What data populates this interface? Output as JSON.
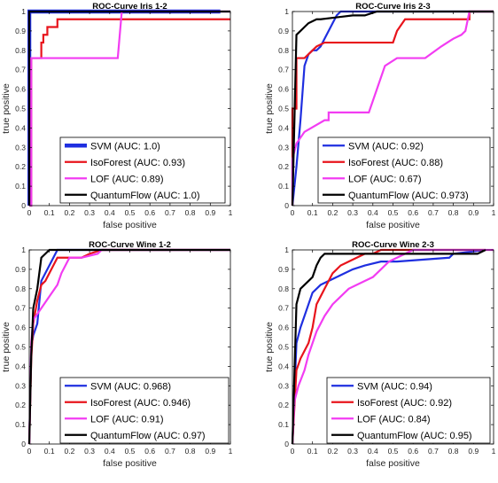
{
  "colors": {
    "svm": "#1f2fe0",
    "isoforest": "#e8141c",
    "lof": "#f23cf2",
    "quantumflow": "#000000"
  },
  "chart_data": [
    {
      "type": "line",
      "title": "ROC-Curve Iris 1-2",
      "xlabel": "false positive",
      "ylabel": "true positive",
      "xlim": [
        0,
        1
      ],
      "ylim": [
        0,
        1
      ],
      "xticks": [
        "0",
        "0.1",
        "0.2",
        "0.3",
        "0.4",
        "0.5",
        "0.6",
        "0.7",
        "0.8",
        "0.9",
        "1"
      ],
      "yticks": [
        "0",
        "0.1",
        "0.2",
        "0.3",
        "0.4",
        "0.5",
        "0.6",
        "0.7",
        "0.8",
        "0.9",
        "1"
      ],
      "legend_position": "bottom-right",
      "grid": false,
      "series": [
        {
          "name": "SVM (AUC: 1.0)",
          "color": "#1f2fe0",
          "width": 4.5,
          "x": [
            0,
            0,
            0.95
          ],
          "y": [
            0,
            1,
            1
          ]
        },
        {
          "name": "IsoForest (AUC: 0.93)",
          "color": "#e8141c",
          "width": 2.2,
          "x": [
            0,
            0.01,
            0.01,
            0.05,
            0.06,
            0.06,
            0.07,
            0.07,
            0.09,
            0.09,
            0.14,
            0.14,
            1.0
          ],
          "y": [
            0,
            0,
            0.76,
            0.76,
            0.76,
            0.84,
            0.84,
            0.88,
            0.88,
            0.92,
            0.92,
            0.96,
            0.96
          ]
        },
        {
          "name": "LOF (AUC: 0.89)",
          "color": "#f23cf2",
          "width": 2.2,
          "x": [
            0,
            0.01,
            0.01,
            0.44,
            0.46,
            0.46,
            1.0
          ],
          "y": [
            0,
            0,
            0.76,
            0.76,
            1.0,
            1.0,
            1.0
          ]
        },
        {
          "name": "QuantumFlow (AUC: 1.0)",
          "color": "#000000",
          "width": 2.2,
          "x": [
            0,
            0,
            0.4,
            1.0
          ],
          "y": [
            0,
            1,
            1,
            1
          ]
        }
      ]
    },
    {
      "type": "line",
      "title": "ROC-Curve Iris 2-3",
      "xlabel": "false positive",
      "ylabel": "true positive",
      "xlim": [
        0,
        1
      ],
      "ylim": [
        0,
        1
      ],
      "xticks": [
        "0",
        "0.1",
        "0.2",
        "0.3",
        "0.4",
        "0.5",
        "0.6",
        "0.7",
        "0.8",
        "0.9",
        "1"
      ],
      "yticks": [
        "0",
        "0.1",
        "0.2",
        "0.3",
        "0.4",
        "0.5",
        "0.6",
        "0.7",
        "0.8",
        "0.9",
        "1"
      ],
      "legend_position": "bottom-right",
      "grid": false,
      "series": [
        {
          "name": "SVM (AUC: 0.92)",
          "color": "#1f2fe0",
          "width": 2.2,
          "x": [
            0,
            0.02,
            0.04,
            0.06,
            0.08,
            0.1,
            0.12,
            0.14,
            0.16,
            0.18,
            0.2,
            0.22,
            0.24,
            0.26,
            1.0
          ],
          "y": [
            0,
            0.2,
            0.44,
            0.72,
            0.78,
            0.8,
            0.8,
            0.82,
            0.86,
            0.9,
            0.94,
            0.98,
            1.0,
            1.0,
            1.0
          ]
        },
        {
          "name": "IsoForest (AUC: 0.88)",
          "color": "#e8141c",
          "width": 2.2,
          "x": [
            0,
            0,
            0.02,
            0.02,
            0.06,
            0.08,
            0.1,
            0.12,
            0.16,
            0.2,
            0.5,
            0.52,
            0.56,
            0.86,
            0.88,
            0.88,
            1.0
          ],
          "y": [
            0,
            0.5,
            0.5,
            0.76,
            0.76,
            0.78,
            0.8,
            0.82,
            0.84,
            0.84,
            0.84,
            0.9,
            0.96,
            0.96,
            0.96,
            1.0,
            1.0
          ]
        },
        {
          "name": "LOF (AUC: 0.67)",
          "color": "#f23cf2",
          "width": 2.2,
          "x": [
            0,
            0,
            0.02,
            0.06,
            0.16,
            0.18,
            0.18,
            0.38,
            0.42,
            0.46,
            0.52,
            0.58,
            0.66,
            0.74,
            0.8,
            0.84,
            0.86,
            0.88,
            0.9,
            1.0
          ],
          "y": [
            0,
            0.24,
            0.32,
            0.38,
            0.44,
            0.44,
            0.48,
            0.48,
            0.6,
            0.72,
            0.76,
            0.76,
            0.76,
            0.82,
            0.86,
            0.88,
            0.9,
            1.0,
            1.0,
            1.0
          ]
        },
        {
          "name": "QuantumFlow (AUC: 0.973)",
          "color": "#000000",
          "width": 2.2,
          "x": [
            0,
            0.02,
            0.04,
            0.06,
            0.08,
            0.12,
            0.14,
            0.3,
            0.36,
            0.42,
            0.5,
            0.6,
            0.8,
            0.92,
            1.0
          ],
          "y": [
            0,
            0.88,
            0.9,
            0.92,
            0.94,
            0.96,
            0.96,
            0.98,
            0.98,
            1.0,
            1.0,
            1.0,
            1.0,
            1.0,
            1.0
          ]
        }
      ]
    },
    {
      "type": "line",
      "title": "ROC-Curve Wine 1-2",
      "xlabel": "false positive",
      "ylabel": "true positive",
      "xlim": [
        0,
        1
      ],
      "ylim": [
        0,
        1
      ],
      "xticks": [
        "0",
        "0.1",
        "0.2",
        "0.3",
        "0.4",
        "0.5",
        "0.6",
        "0.7",
        "0.8",
        "0.9",
        "1"
      ],
      "yticks": [
        "0",
        "0.1",
        "0.2",
        "0.3",
        "0.4",
        "0.5",
        "0.6",
        "0.7",
        "0.8",
        "0.9",
        "1"
      ],
      "legend_position": "bottom-right",
      "grid": false,
      "series": [
        {
          "name": "SVM (AUC: 0.968)",
          "color": "#1f2fe0",
          "width": 2.2,
          "x": [
            0,
            0.01,
            0.02,
            0.04,
            0.06,
            0.08,
            0.1,
            0.12,
            0.14,
            0.16,
            0.18,
            1.0
          ],
          "y": [
            0,
            0.5,
            0.56,
            0.62,
            0.84,
            0.88,
            0.92,
            0.96,
            1.0,
            1.0,
            1.0,
            1.0
          ]
        },
        {
          "name": "IsoForest (AUC: 0.946)",
          "color": "#e8141c",
          "width": 2.2,
          "x": [
            0,
            0.01,
            0.02,
            0.04,
            0.06,
            0.08,
            0.1,
            0.14,
            0.2,
            0.26,
            0.3,
            0.36,
            0.4,
            0.46,
            0.52,
            1.0
          ],
          "y": [
            0,
            0.44,
            0.62,
            0.74,
            0.82,
            0.84,
            0.88,
            0.96,
            0.96,
            0.96,
            0.98,
            1.0,
            1.0,
            1.0,
            1.0,
            1.0
          ]
        },
        {
          "name": "LOF (AUC: 0.91)",
          "color": "#f23cf2",
          "width": 2.2,
          "x": [
            0,
            0.01,
            0.02,
            0.06,
            0.1,
            0.14,
            0.16,
            0.18,
            0.2,
            0.22,
            0.26,
            0.34,
            0.36,
            1.0
          ],
          "y": [
            0,
            0.52,
            0.64,
            0.7,
            0.76,
            0.82,
            0.88,
            0.92,
            0.96,
            0.96,
            0.96,
            0.98,
            1.0,
            1.0
          ]
        },
        {
          "name": "QuantumFlow (AUC: 0.97)",
          "color": "#000000",
          "width": 2.2,
          "x": [
            0,
            0.01,
            0.02,
            0.04,
            0.06,
            0.08,
            0.1,
            0.12,
            0.2,
            0.3,
            1.0
          ],
          "y": [
            0,
            0.46,
            0.7,
            0.8,
            0.96,
            0.98,
            1.0,
            1.0,
            1.0,
            1.0,
            1.0
          ]
        }
      ]
    },
    {
      "type": "line",
      "title": "ROC-Curve Wine 2-3",
      "xlabel": "false positive",
      "ylabel": "true positive",
      "xlim": [
        0,
        1
      ],
      "ylim": [
        0,
        1
      ],
      "xticks": [
        "0",
        "0.1",
        "0.2",
        "0.3",
        "0.4",
        "0.5",
        "0.6",
        "0.7",
        "0.8",
        "0.9",
        "1"
      ],
      "yticks": [
        "0",
        "0.1",
        "0.2",
        "0.3",
        "0.4",
        "0.5",
        "0.6",
        "0.7",
        "0.8",
        "0.9",
        "1"
      ],
      "legend_position": "bottom-right",
      "grid": false,
      "series": [
        {
          "name": "SVM (AUC: 0.94)",
          "color": "#1f2fe0",
          "width": 2.2,
          "x": [
            0,
            0.02,
            0.04,
            0.06,
            0.08,
            0.1,
            0.14,
            0.18,
            0.22,
            0.26,
            0.3,
            0.36,
            0.44,
            0.52,
            0.78,
            0.8,
            0.96
          ],
          "y": [
            0,
            0.52,
            0.6,
            0.66,
            0.72,
            0.78,
            0.82,
            0.84,
            0.86,
            0.88,
            0.9,
            0.92,
            0.94,
            0.94,
            0.96,
            0.98,
            1.0
          ]
        },
        {
          "name": "IsoForest (AUC: 0.92)",
          "color": "#e8141c",
          "width": 2.2,
          "x": [
            0,
            0.02,
            0.04,
            0.06,
            0.08,
            0.1,
            0.12,
            0.14,
            0.16,
            0.18,
            0.2,
            0.22,
            0.24,
            0.28,
            0.32,
            0.36,
            0.4,
            0.44,
            0.48,
            0.55,
            0.96
          ],
          "y": [
            0,
            0.38,
            0.44,
            0.48,
            0.52,
            0.6,
            0.72,
            0.76,
            0.8,
            0.84,
            0.88,
            0.9,
            0.92,
            0.94,
            0.96,
            0.98,
            0.98,
            1.0,
            1.0,
            1.0,
            1.0
          ]
        },
        {
          "name": "LOF (AUC: 0.84)",
          "color": "#f23cf2",
          "width": 2.2,
          "x": [
            0,
            0.01,
            0.03,
            0.06,
            0.08,
            0.1,
            0.12,
            0.14,
            0.16,
            0.2,
            0.24,
            0.28,
            0.32,
            0.36,
            0.4,
            0.44,
            0.48,
            0.52,
            0.56,
            0.6,
            0.66,
            1.0
          ],
          "y": [
            0,
            0.22,
            0.3,
            0.38,
            0.46,
            0.52,
            0.58,
            0.62,
            0.66,
            0.72,
            0.76,
            0.8,
            0.82,
            0.84,
            0.86,
            0.9,
            0.94,
            0.96,
            0.98,
            1.0,
            1.0,
            1.0
          ]
        },
        {
          "name": "QuantumFlow (AUC: 0.95)",
          "color": "#000000",
          "width": 2.2,
          "x": [
            0,
            0.02,
            0.04,
            0.06,
            0.08,
            0.1,
            0.12,
            0.14,
            0.16,
            0.18,
            0.22,
            0.28,
            0.34,
            0.4,
            0.52,
            0.6,
            0.92,
            0.96
          ],
          "y": [
            0,
            0.72,
            0.8,
            0.82,
            0.84,
            0.86,
            0.92,
            0.96,
            0.98,
            0.98,
            0.98,
            0.98,
            0.98,
            0.98,
            0.98,
            0.98,
            0.98,
            1.0
          ]
        }
      ]
    }
  ]
}
